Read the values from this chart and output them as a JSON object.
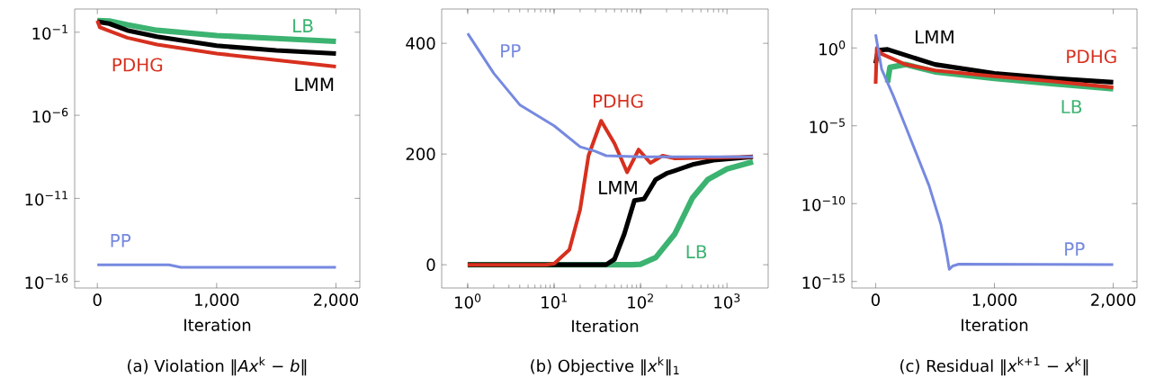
{
  "chart_data": [
    {
      "type": "line",
      "title": "(a) Violation ‖*Ax*$^{k}$ − *b*‖",
      "xlabel": "Iteration",
      "log": "y",
      "xlim": [
        -190,
        2200
      ],
      "xticks": [
        0,
        {
          "value": 1000,
          "label": "1,000"
        },
        {
          "value": 2000,
          "label": "2,000"
        }
      ],
      "ylim": [
        4e-17,
        2.5
      ],
      "yticks": [
        {
          "value": 1e-16,
          "label": "10$^{−16}$"
        },
        {
          "value": 1e-11,
          "label": "10$^{−11}$"
        },
        {
          "value": 1e-06,
          "label": "10$^{−6}$"
        },
        {
          "value": 0.1,
          "label": "10$^{−1}$"
        }
      ],
      "series": [
        {
          "name": "LB",
          "color": "#3cb371",
          "x": [
            0,
            100,
            250,
            500,
            1000,
            1500,
            2000
          ],
          "values": [
            0.5,
            0.47,
            0.28,
            0.13,
            0.063,
            0.042,
            0.028
          ]
        },
        {
          "name": "LMM",
          "color": "#000000",
          "x": [
            0,
            100,
            250,
            500,
            1000,
            1500,
            2000
          ],
          "values": [
            0.43,
            0.33,
            0.13,
            0.054,
            0.0155,
            0.008,
            0.0052
          ]
        },
        {
          "name": "PDHG",
          "color": "#d7301f",
          "x": [
            0,
            20,
            100,
            250,
            500,
            1000,
            1500,
            2000
          ],
          "values": [
            0.5,
            0.2,
            0.12,
            0.047,
            0.018,
            0.0052,
            0.0021,
            0.00085
          ]
        },
        {
          "name": "PP",
          "color": "#7689e0",
          "x": [
            0,
            600,
            700,
            2000
          ],
          "values": [
            1e-15,
            1e-15,
            7e-16,
            7e-16
          ]
        }
      ]
    },
    {
      "type": "line",
      "title": "(b) Objective ‖*x*$^{k}$‖$_{1}$",
      "xlabel": "Iteration",
      "log": "x",
      "xlim": [
        0.5,
        3000
      ],
      "xticks": [
        {
          "value": 1,
          "label": "10$^{0}$"
        },
        {
          "value": 10,
          "label": "10$^{1}$"
        },
        {
          "value": 100,
          "label": "10$^{2}$"
        },
        {
          "value": 1000,
          "label": "10$^{3}$"
        }
      ],
      "ylim": [
        -42,
        462
      ],
      "yticks": [
        0,
        200,
        400
      ],
      "series": [
        {
          "name": "LB",
          "color": "#3cb371",
          "x": [
            1,
            80,
            100,
            150,
            250,
            400,
            600,
            1000,
            2000
          ],
          "values": [
            0,
            0,
            1,
            13,
            56,
            121,
            154,
            173,
            186
          ]
        },
        {
          "name": "LMM",
          "color": "#000000",
          "x": [
            1,
            40,
            50,
            65,
            85,
            110,
            150,
            200,
            250,
            400,
            700,
            2000
          ],
          "values": [
            0,
            0,
            10,
            56,
            116,
            119,
            154,
            165,
            170,
            181,
            189,
            195
          ]
        },
        {
          "name": "PDHG",
          "color": "#d7301f",
          "x": [
            1,
            8,
            10,
            15,
            20,
            25,
            35,
            50,
            70,
            95,
            130,
            180,
            250,
            2000
          ],
          "values": [
            0,
            0,
            2,
            27,
            100,
            197,
            260,
            219,
            167,
            208,
            184,
            197,
            192,
            195
          ]
        },
        {
          "name": "PP",
          "color": "#7689e0",
          "x": [
            1,
            2,
            4,
            10,
            20,
            30,
            40,
            100,
            2000
          ],
          "values": [
            418,
            346,
            289,
            251,
            213,
            205,
            197,
            195,
            195
          ]
        }
      ]
    },
    {
      "type": "line",
      "title": "(c) Residual ‖*x*$^{k+1}$ − *x*$^{k}$‖",
      "xlabel": "Iteration",
      "log": "y",
      "xlim": [
        -200,
        2200
      ],
      "xticks": [
        0,
        {
          "value": 1000,
          "label": "1,000"
        },
        {
          "value": 2000,
          "label": "2,000"
        }
      ],
      "ylim": [
        3.8e-16,
        316
      ],
      "yticks": [
        {
          "value": 1e-15,
          "label": "10$^{−15}$"
        },
        {
          "value": 1e-10,
          "label": "10$^{−10}$"
        },
        {
          "value": 1e-05,
          "label": "10$^{−5}$"
        },
        {
          "value": 1,
          "label": "10$^{0}$"
        }
      ],
      "series": [
        {
          "name": "LB",
          "color": "#3cb371",
          "x": [
            100,
            120,
            250,
            500,
            1000,
            1500,
            2000
          ],
          "values": [
            0.006,
            0.056,
            0.087,
            0.029,
            0.011,
            0.005,
            0.0024
          ]
        },
        {
          "name": "LMM",
          "color": "#000000",
          "x": [
            0,
            20,
            100,
            500,
            1000,
            1500,
            2000
          ],
          "values": [
            0.1,
            0.7,
            0.8,
            0.087,
            0.023,
            0.011,
            0.0063
          ]
        },
        {
          "name": "PDHG",
          "color": "#d7301f",
          "x": [
            0,
            10,
            50,
            250,
            500,
            1000,
            1500,
            2000
          ],
          "values": [
            0.005,
            1.0,
            0.41,
            0.087,
            0.036,
            0.015,
            0.007,
            0.0029
          ]
        },
        {
          "name": "PP",
          "color": "#7689e0",
          "x": [
            0,
            50,
            150,
            250,
            350,
            450,
            550,
            600,
            620,
            650,
            700,
            2000
          ],
          "values": [
            7.4,
            0.045,
            0.0008,
            1e-05,
            1.2e-07,
            1.4e-09,
            4.5e-12,
            5e-14,
            6e-15,
            1e-14,
            1.3e-14,
            1.2e-14
          ]
        }
      ]
    }
  ]
}
